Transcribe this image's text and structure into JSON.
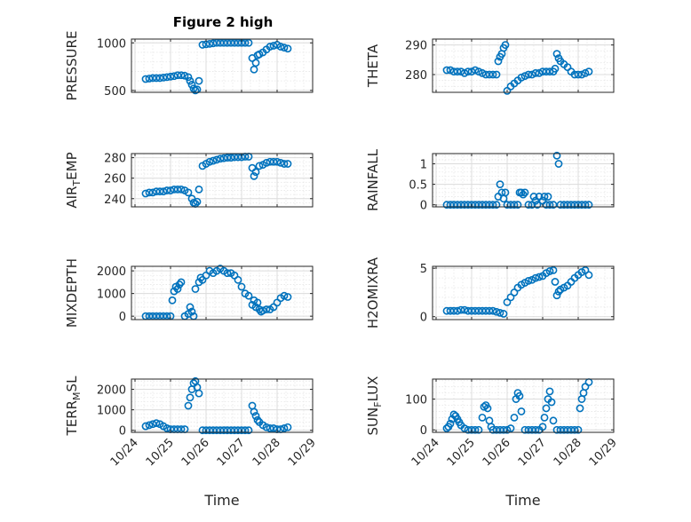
{
  "title": "Figure 2 high",
  "xlabel": "Time",
  "xticks": [
    "10/24",
    "10/25",
    "10/26",
    "10/27",
    "10/28",
    "10/29"
  ],
  "marker_color": "#0072BD",
  "chart_data": [
    {
      "id": "pressure",
      "type": "scatter",
      "ylabel": "PRESSURE",
      "ylim": [
        480,
        1040
      ],
      "yticks": [
        500,
        1000
      ],
      "x": [
        24.3,
        24.4,
        24.5,
        24.6,
        24.7,
        24.8,
        24.9,
        25.0,
        25.1,
        25.2,
        25.3,
        25.4,
        25.5,
        25.55,
        25.6,
        25.65,
        25.7,
        25.75,
        25.8,
        25.9,
        26.0,
        26.1,
        26.2,
        26.3,
        26.4,
        26.5,
        26.6,
        26.7,
        26.8,
        26.9,
        27.0,
        27.1,
        27.2,
        27.3,
        27.35,
        27.4,
        27.45,
        27.5,
        27.6,
        27.7,
        27.8,
        27.9,
        28.0,
        28.1,
        28.2,
        28.3
      ],
      "y": [
        620,
        625,
        630,
        630,
        630,
        635,
        640,
        645,
        650,
        660,
        660,
        655,
        640,
        600,
        560,
        520,
        500,
        510,
        600,
        980,
        985,
        990,
        995,
        1000,
        1000,
        1000,
        1000,
        1000,
        1000,
        1000,
        1000,
        1000,
        1000,
        840,
        720,
        790,
        870,
        880,
        900,
        930,
        960,
        970,
        980,
        960,
        950,
        940
      ]
    },
    {
      "id": "theta",
      "type": "scatter",
      "ylabel": "THETA",
      "ylim": [
        274,
        292
      ],
      "yticks": [
        280,
        290
      ],
      "x": [
        24.3,
        24.4,
        24.5,
        24.6,
        24.7,
        24.8,
        24.9,
        25.0,
        25.1,
        25.2,
        25.3,
        25.4,
        25.5,
        25.6,
        25.7,
        25.75,
        25.8,
        25.85,
        25.9,
        25.95,
        26.0,
        26.1,
        26.2,
        26.3,
        26.4,
        26.5,
        26.6,
        26.7,
        26.8,
        26.9,
        27.0,
        27.1,
        27.2,
        27.3,
        27.35,
        27.4,
        27.45,
        27.5,
        27.6,
        27.7,
        27.8,
        27.9,
        28.0,
        28.1,
        28.2,
        28.3
      ],
      "y": [
        281.5,
        281.5,
        281,
        281,
        281,
        280.5,
        281,
        281,
        281.5,
        281,
        280.5,
        280,
        280,
        280,
        280,
        284.5,
        286,
        287,
        289,
        290,
        274.5,
        276,
        277,
        278,
        279,
        279.5,
        280,
        280,
        280.5,
        280.5,
        281,
        281,
        281,
        281,
        282,
        287,
        285.5,
        284.5,
        283.5,
        282.5,
        281,
        280,
        280,
        280,
        280.5,
        281
      ]
    },
    {
      "id": "air-temp",
      "type": "scatter",
      "ylabel": "AIR_TEMP",
      "ylim": [
        232,
        284
      ],
      "yticks": [
        240,
        260,
        280
      ],
      "x": [
        24.3,
        24.4,
        24.5,
        24.6,
        24.7,
        24.8,
        24.9,
        25.0,
        25.1,
        25.2,
        25.3,
        25.4,
        25.5,
        25.6,
        25.65,
        25.7,
        25.75,
        25.8,
        25.9,
        26.0,
        26.1,
        26.2,
        26.3,
        26.4,
        26.5,
        26.6,
        26.7,
        26.8,
        26.9,
        27.0,
        27.1,
        27.2,
        27.3,
        27.35,
        27.4,
        27.5,
        27.6,
        27.7,
        27.8,
        27.9,
        28.0,
        28.1,
        28.2,
        28.3
      ],
      "y": [
        245,
        246,
        246,
        247,
        247,
        247,
        248,
        248,
        249,
        249,
        249,
        248,
        246,
        240,
        236,
        235,
        237,
        249,
        272,
        274,
        276,
        277,
        278,
        279,
        279.5,
        280,
        280,
        280.5,
        280.5,
        280.5,
        281,
        281,
        270,
        262,
        266,
        272,
        273,
        275,
        276,
        276,
        276,
        275,
        274,
        274
      ]
    },
    {
      "id": "rainfall",
      "type": "scatter",
      "ylabel": "RAINFALL",
      "ylim": [
        -0.05,
        1.25
      ],
      "yticks": [
        0,
        0.5,
        1
      ],
      "x": [
        24.3,
        24.4,
        24.5,
        24.6,
        24.7,
        24.8,
        24.9,
        25.0,
        25.1,
        25.2,
        25.3,
        25.4,
        25.5,
        25.6,
        25.7,
        25.75,
        25.8,
        25.85,
        25.9,
        25.95,
        26.0,
        26.1,
        26.2,
        26.3,
        26.35,
        26.4,
        26.45,
        26.5,
        26.6,
        26.7,
        26.75,
        26.8,
        26.85,
        26.9,
        27.0,
        27.05,
        27.1,
        27.15,
        27.2,
        27.3,
        27.4,
        27.45,
        27.5,
        27.6,
        27.7,
        27.8,
        27.9,
        28.0,
        28.1,
        28.2,
        28.3
      ],
      "y": [
        0,
        0,
        0,
        0,
        0,
        0,
        0,
        0,
        0,
        0,
        0,
        0,
        0,
        0,
        0,
        0.2,
        0.5,
        0.3,
        0.15,
        0.3,
        0,
        0,
        0,
        0,
        0.3,
        0.3,
        0.25,
        0.3,
        0,
        0,
        0.2,
        0.1,
        0,
        0.2,
        0.1,
        0.2,
        0,
        0.2,
        0,
        0,
        1.2,
        1.0,
        0,
        0,
        0,
        0,
        0,
        0,
        0,
        0,
        0
      ]
    },
    {
      "id": "mixdepth",
      "type": "scatter",
      "ylabel": "MIXDEPTH",
      "ylim": [
        -150,
        2200
      ],
      "yticks": [
        0,
        1000,
        2000
      ],
      "x": [
        24.3,
        24.4,
        24.5,
        24.6,
        24.7,
        24.8,
        24.9,
        25.0,
        25.05,
        25.1,
        25.15,
        25.2,
        25.25,
        25.3,
        25.4,
        25.5,
        25.55,
        25.6,
        25.65,
        25.7,
        25.8,
        25.85,
        25.9,
        26.0,
        26.1,
        26.2,
        26.3,
        26.4,
        26.5,
        26.6,
        26.7,
        26.8,
        26.9,
        27.0,
        27.1,
        27.2,
        27.3,
        27.35,
        27.4,
        27.45,
        27.5,
        27.55,
        27.6,
        27.7,
        27.8,
        27.9,
        28.0,
        28.1,
        28.2,
        28.3
      ],
      "y": [
        0,
        0,
        0,
        0,
        0,
        0,
        0,
        0,
        700,
        1100,
        1300,
        1200,
        1400,
        1500,
        0,
        100,
        400,
        200,
        0,
        1200,
        1500,
        1700,
        1600,
        1800,
        2000,
        1900,
        2000,
        2100,
        2000,
        1900,
        1900,
        1800,
        1600,
        1300,
        1000,
        900,
        500,
        700,
        400,
        600,
        300,
        200,
        250,
        300,
        300,
        400,
        600,
        800,
        900,
        850
      ]
    },
    {
      "id": "h2omixra",
      "type": "scatter",
      "ylabel": "H2OMIXRA",
      "ylim": [
        -0.3,
        5.2
      ],
      "yticks": [
        0,
        5
      ],
      "x": [
        24.3,
        24.4,
        24.5,
        24.6,
        24.7,
        24.8,
        24.9,
        25.0,
        25.1,
        25.2,
        25.3,
        25.4,
        25.5,
        25.6,
        25.7,
        25.8,
        25.9,
        26.0,
        26.1,
        26.2,
        26.3,
        26.4,
        26.5,
        26.6,
        26.7,
        26.8,
        26.9,
        27.0,
        27.1,
        27.2,
        27.3,
        27.35,
        27.4,
        27.45,
        27.5,
        27.6,
        27.7,
        27.8,
        27.9,
        28.0,
        28.1,
        28.2,
        28.3
      ],
      "y": [
        0.6,
        0.6,
        0.6,
        0.6,
        0.7,
        0.7,
        0.6,
        0.6,
        0.6,
        0.6,
        0.6,
        0.6,
        0.6,
        0.6,
        0.5,
        0.4,
        0.3,
        1.5,
        2.0,
        2.5,
        3.0,
        3.3,
        3.5,
        3.7,
        3.8,
        4.0,
        4.1,
        4.2,
        4.5,
        4.7,
        4.8,
        3.6,
        2.2,
        2.6,
        2.8,
        3.0,
        3.2,
        3.6,
        4.0,
        4.3,
        4.6,
        4.8,
        4.3
      ]
    },
    {
      "id": "terr-msl",
      "type": "scatter",
      "ylabel": "TERR_MSL",
      "ylim": [
        -100,
        2500
      ],
      "yticks": [
        0,
        1000,
        2000
      ],
      "x": [
        24.3,
        24.4,
        24.5,
        24.6,
        24.7,
        24.8,
        24.9,
        25.0,
        25.1,
        25.2,
        25.3,
        25.4,
        25.5,
        25.55,
        25.6,
        25.65,
        25.7,
        25.75,
        25.8,
        25.9,
        26.0,
        26.1,
        26.2,
        26.3,
        26.4,
        26.5,
        26.6,
        26.7,
        26.8,
        26.9,
        27.0,
        27.1,
        27.2,
        27.3,
        27.35,
        27.4,
        27.45,
        27.5,
        27.6,
        27.7,
        27.8,
        27.9,
        28.0,
        28.1,
        28.2,
        28.3
      ],
      "y": [
        200,
        250,
        300,
        350,
        300,
        200,
        100,
        50,
        50,
        50,
        50,
        50,
        1200,
        1600,
        2000,
        2300,
        2400,
        2100,
        1800,
        0,
        0,
        0,
        0,
        0,
        0,
        0,
        0,
        0,
        0,
        0,
        0,
        0,
        0,
        1200,
        900,
        700,
        500,
        400,
        250,
        150,
        100,
        100,
        50,
        50,
        100,
        150
      ]
    },
    {
      "id": "sun-flux",
      "type": "scatter",
      "ylabel": "SUN_FLUX",
      "ylim": [
        -8,
        165
      ],
      "yticks": [
        0,
        100
      ],
      "x": [
        24.3,
        24.35,
        24.4,
        24.45,
        24.5,
        24.55,
        24.6,
        24.65,
        24.7,
        24.8,
        24.9,
        25.0,
        25.1,
        25.2,
        25.3,
        25.35,
        25.4,
        25.45,
        25.5,
        25.55,
        25.6,
        25.7,
        25.8,
        25.9,
        26.0,
        26.1,
        26.2,
        26.25,
        26.3,
        26.35,
        26.4,
        26.5,
        26.6,
        26.7,
        26.8,
        26.9,
        27.0,
        27.05,
        27.1,
        27.15,
        27.2,
        27.25,
        27.3,
        27.4,
        27.5,
        27.6,
        27.7,
        27.8,
        27.9,
        28.0,
        28.05,
        28.1,
        28.15,
        28.2,
        28.3
      ],
      "y": [
        5,
        10,
        20,
        35,
        50,
        45,
        35,
        25,
        15,
        5,
        0,
        0,
        0,
        0,
        40,
        75,
        80,
        70,
        30,
        10,
        0,
        0,
        0,
        0,
        0,
        5,
        40,
        100,
        120,
        110,
        60,
        0,
        0,
        0,
        0,
        0,
        10,
        40,
        70,
        100,
        125,
        90,
        30,
        0,
        0,
        0,
        0,
        0,
        0,
        0,
        70,
        100,
        120,
        140,
        155
      ]
    }
  ]
}
